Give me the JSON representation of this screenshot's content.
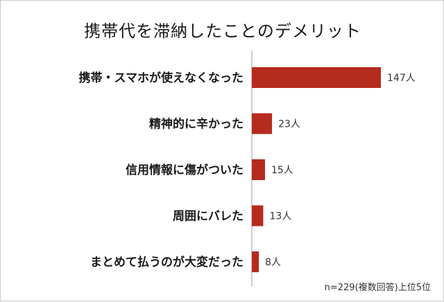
{
  "chart_data": {
    "type": "bar",
    "orientation": "horizontal",
    "title": "携帯代を滞納したことのデメリット",
    "categories": [
      "携帯・スマホが使えなくなった",
      "精神的に辛かった",
      "信用情報に傷がついた",
      "周囲にバレた",
      "まとめて払うのが大変だった"
    ],
    "values": [
      147,
      23,
      15,
      13,
      8
    ],
    "value_labels": [
      "147人",
      "23人",
      "15人",
      "13人",
      "8人"
    ],
    "bar_color": "#b52b1d",
    "xlim": [
      0,
      147
    ],
    "grid": false,
    "note": "n=229(複数回答)上位5位"
  }
}
